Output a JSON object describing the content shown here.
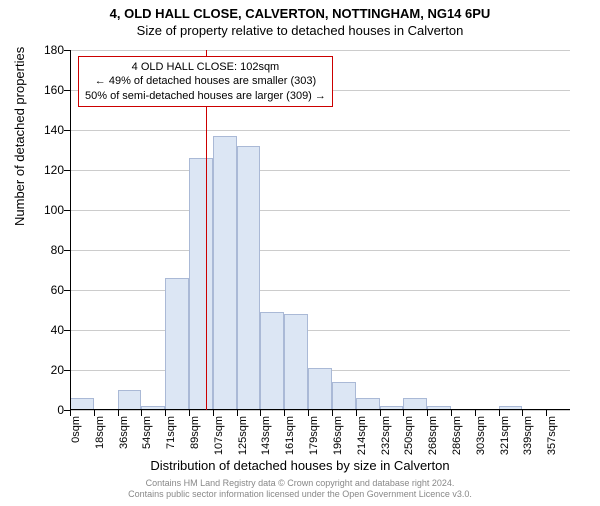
{
  "title_line1": "4, OLD HALL CLOSE, CALVERTON, NOTTINGHAM, NG14 6PU",
  "title_line2": "Size of property relative to detached houses in Calverton",
  "ylabel": "Number of detached properties",
  "xlabel": "Distribution of detached houses by size in Calverton",
  "footer_line1": "Contains HM Land Registry data © Crown copyright and database right 2024.",
  "footer_line2": "Contains public sector information licensed under the Open Government Licence v3.0.",
  "annotation": {
    "line1": "4 OLD HALL CLOSE: 102sqm",
    "line2": "← 49% of detached houses are smaller (303)",
    "line3": "50% of semi-detached houses are larger (309) →"
  },
  "chart": {
    "type": "histogram",
    "ylim_min": 0,
    "ylim_max": 180,
    "ytick_step": 20,
    "yticks": [
      0,
      20,
      40,
      60,
      80,
      100,
      120,
      140,
      160,
      180
    ],
    "xtick_labels": [
      "0sqm",
      "18sqm",
      "36sqm",
      "54sqm",
      "71sqm",
      "89sqm",
      "107sqm",
      "125sqm",
      "143sqm",
      "161sqm",
      "179sqm",
      "196sqm",
      "214sqm",
      "232sqm",
      "250sqm",
      "268sqm",
      "286sqm",
      "303sqm",
      "321sqm",
      "339sqm",
      "357sqm"
    ],
    "xtick_positions": [
      0,
      1,
      2,
      3,
      4,
      5,
      6,
      7,
      8,
      9,
      10,
      11,
      12,
      13,
      14,
      15,
      16,
      17,
      18,
      19,
      20
    ],
    "bar_values": [
      6,
      0,
      10,
      2,
      66,
      126,
      137,
      132,
      49,
      48,
      21,
      14,
      6,
      2,
      6,
      2,
      0,
      0,
      2,
      0,
      0
    ],
    "bar_fill": "#dce6f4",
    "bar_stroke": "#aab9d6",
    "background": "#ffffff",
    "grid_color": "#cccccc",
    "axis_color": "#000000",
    "marker_color": "#cc0000",
    "marker_position": 5.72,
    "annotation_border": "#cc0000",
    "annotation_bg": "#ffffff",
    "title_fontsize": 13,
    "label_fontsize": 13,
    "tick_fontsize": 11
  }
}
